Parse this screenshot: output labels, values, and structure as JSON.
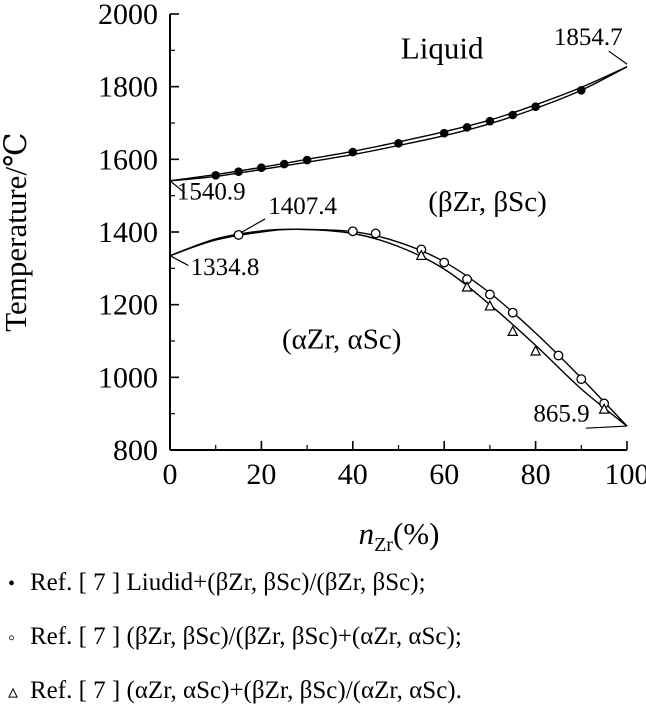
{
  "chart_data": {
    "type": "line",
    "title": "",
    "xlabel": "n_Zr(%)",
    "xlabel_parts": {
      "symbol": "n",
      "subscript": "Zr",
      "rest": "(%)"
    },
    "ylabel": "Temperature/℃",
    "xlim": [
      0,
      100
    ],
    "ylim": [
      800,
      2000
    ],
    "xticks": [
      0,
      20,
      40,
      60,
      80,
      100
    ],
    "yticks": [
      800,
      1000,
      1200,
      1400,
      1600,
      1800,
      2000
    ],
    "x_minor_ticks": [
      10,
      30,
      50,
      70,
      90
    ],
    "y_minor_ticks": [
      900,
      1100,
      1300,
      1500,
      1700,
      1900
    ],
    "grid": false,
    "legend_position": "below",
    "ink_color": "#000000",
    "curves": [
      {
        "name": "liquidus-upper",
        "points": [
          [
            0,
            1540.9
          ],
          [
            10,
            1558
          ],
          [
            20,
            1578
          ],
          [
            30,
            1600
          ],
          [
            40,
            1622
          ],
          [
            50,
            1648
          ],
          [
            60,
            1676
          ],
          [
            70,
            1708
          ],
          [
            80,
            1750
          ],
          [
            90,
            1798
          ],
          [
            100,
            1854.7
          ]
        ]
      },
      {
        "name": "liquidus-lower",
        "points": [
          [
            0,
            1540.9
          ],
          [
            10,
            1553
          ],
          [
            20,
            1572
          ],
          [
            30,
            1592
          ],
          [
            40,
            1613
          ],
          [
            50,
            1638
          ],
          [
            60,
            1665
          ],
          [
            70,
            1698
          ],
          [
            80,
            1740
          ],
          [
            90,
            1790
          ],
          [
            100,
            1854.7
          ]
        ]
      },
      {
        "name": "transus-upper",
        "points": [
          [
            0,
            1334.8
          ],
          [
            10,
            1381
          ],
          [
            20,
            1403
          ],
          [
            28,
            1407.4
          ],
          [
            40,
            1401
          ],
          [
            50,
            1372
          ],
          [
            60,
            1318
          ],
          [
            70,
            1232
          ],
          [
            80,
            1122
          ],
          [
            90,
            998
          ],
          [
            100,
            865.9
          ]
        ]
      },
      {
        "name": "transus-lower",
        "points": [
          [
            0,
            1334.8
          ],
          [
            10,
            1378
          ],
          [
            20,
            1400
          ],
          [
            28,
            1407.4
          ],
          [
            40,
            1396
          ],
          [
            50,
            1360
          ],
          [
            60,
            1298
          ],
          [
            70,
            1200
          ],
          [
            80,
            1088
          ],
          [
            90,
            968
          ],
          [
            100,
            865.9
          ]
        ]
      }
    ],
    "series": [
      {
        "name": "liquidus-ref7",
        "marker": "filled-circle",
        "points": [
          [
            10,
            1556
          ],
          [
            15,
            1566
          ],
          [
            20,
            1577
          ],
          [
            25,
            1587
          ],
          [
            30,
            1598
          ],
          [
            40,
            1620
          ],
          [
            50,
            1644
          ],
          [
            60,
            1672
          ],
          [
            65,
            1688
          ],
          [
            70,
            1705
          ],
          [
            75,
            1722
          ],
          [
            80,
            1745
          ],
          [
            90,
            1790
          ]
        ]
      },
      {
        "name": "beta-transus-ref7",
        "marker": "open-circle",
        "points": [
          [
            15,
            1392
          ],
          [
            40,
            1402
          ],
          [
            45,
            1396
          ],
          [
            55,
            1352
          ],
          [
            60,
            1316
          ],
          [
            65,
            1270
          ],
          [
            70,
            1228
          ],
          [
            75,
            1178
          ],
          [
            85,
            1060
          ],
          [
            90,
            995
          ],
          [
            95,
            928
          ]
        ]
      },
      {
        "name": "alpha-transus-ref7",
        "marker": "open-triangle",
        "points": [
          [
            55,
            1335
          ],
          [
            65,
            1248
          ],
          [
            70,
            1196
          ],
          [
            75,
            1126
          ],
          [
            80,
            1072
          ],
          [
            95,
            912
          ]
        ]
      }
    ],
    "annotations": [
      {
        "id": "liquid-region-label",
        "text": "Liquid",
        "x": 50.5,
        "y": 1878,
        "anchor": "start",
        "size": 31
      },
      {
        "id": "liquidus-max-value",
        "text": "1854.7",
        "x": 84,
        "y": 1914,
        "anchor": "start",
        "size": 25,
        "leader": [
          [
            96,
            1898
          ],
          [
            100,
            1862
          ]
        ]
      },
      {
        "id": "liquidus-min-value",
        "text": "1540.9",
        "x": 1.5,
        "y": 1490,
        "anchor": "start",
        "size": 25,
        "leader": [
          [
            0,
            1540.9
          ],
          [
            3.2,
            1508
          ]
        ]
      },
      {
        "id": "transus-peak-value",
        "text": "1407.4",
        "x": 21.5,
        "y": 1450,
        "anchor": "start",
        "size": 25,
        "leader": [
          [
            20.8,
            1436
          ],
          [
            15.5,
            1398
          ]
        ]
      },
      {
        "id": "transus-left-value",
        "text": "1334.8",
        "x": 4.5,
        "y": 1282,
        "anchor": "start",
        "size": 25,
        "leader": [
          [
            0,
            1334.8
          ],
          [
            4,
            1308
          ]
        ]
      },
      {
        "id": "beta-region-label",
        "text": "(βZr, βSc)",
        "x": 56.5,
        "y": 1458,
        "anchor": "start",
        "size": 29
      },
      {
        "id": "alpha-region-label",
        "text": "(αZr, αSc)",
        "x": 24.5,
        "y": 1080,
        "anchor": "start",
        "size": 29
      },
      {
        "id": "transus-right-value",
        "text": "865.9",
        "x": 79.5,
        "y": 878,
        "anchor": "start",
        "size": 25,
        "leader": [
          [
            91,
            860
          ],
          [
            100,
            865.9
          ]
        ]
      }
    ]
  },
  "legend": {
    "items": [
      {
        "marker": "•",
        "marker_name": "filled-circle-marker",
        "text": "Ref. [ 7 ] Liudid+(βZr, βSc)/(βZr, βSc);"
      },
      {
        "marker": "◦",
        "marker_name": "open-circle-marker",
        "text": "Ref. [ 7 ] (βZr, βSc)/(βZr, βSc)+(αZr, αSc);"
      },
      {
        "marker": "▵",
        "marker_name": "open-triangle-marker",
        "text": "Ref. [ 7 ] (αZr, αSc)+(βZr, βSc)/(αZr, αSc)."
      }
    ]
  }
}
